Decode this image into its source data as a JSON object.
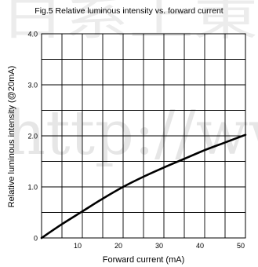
{
  "chart_data": {
    "type": "line",
    "title": "Fig.5 Relative luminous intensity vs. forward current",
    "xlabel": "Forward current (mA)",
    "ylabel": "Relative luminous intensity (@20mA)",
    "xlim": [
      0,
      50
    ],
    "ylim": [
      0,
      4.0
    ],
    "x_ticks": [
      10,
      20,
      30,
      40,
      50
    ],
    "x_tick_labels": [
      "10",
      "20",
      "30",
      "40",
      "50"
    ],
    "y_ticks": [
      0,
      1.0,
      2.0,
      3.0,
      4.0
    ],
    "y_tick_labels": [
      "0",
      "1.0",
      "2.0",
      "3.0",
      "4.0"
    ],
    "grid": true,
    "series": [
      {
        "x": [
          0,
          5,
          10,
          15,
          20,
          25,
          30,
          35,
          40,
          45,
          50
        ],
        "y": [
          0,
          0.27,
          0.52,
          0.77,
          1.0,
          1.2,
          1.38,
          1.55,
          1.72,
          1.87,
          2.02
        ]
      }
    ]
  },
  "watermark": {
    "text": "http://ww",
    "cjk_text": "日系上東"
  }
}
